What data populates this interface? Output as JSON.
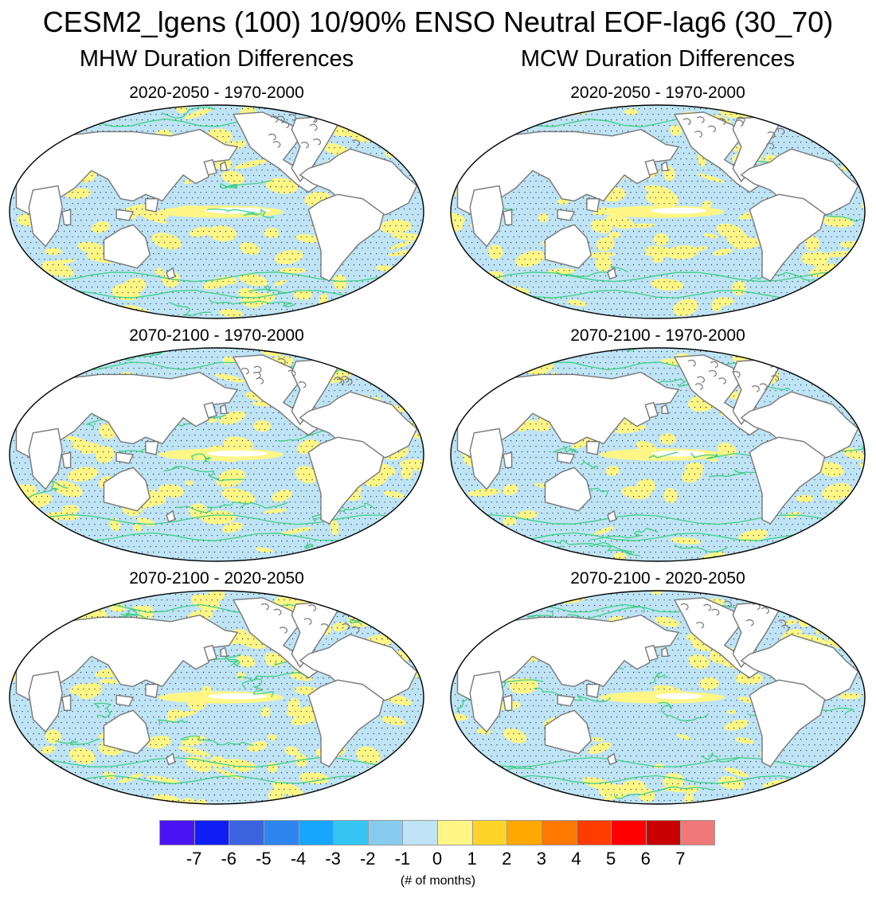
{
  "title": "CESM2_lgens (100) 10/90% ENSO Neutral EOF-lag6 (30_70)",
  "columns": [
    "MHW Duration Differences",
    "MCW Duration Differences"
  ],
  "panels": [
    {
      "subtitle": "2020-2050 - 1970-2000"
    },
    {
      "subtitle": "2020-2050 - 1970-2000"
    },
    {
      "subtitle": "2070-2100 - 1970-2000"
    },
    {
      "subtitle": "2070-2100 - 1970-2000"
    },
    {
      "subtitle": "2070-2100 - 2020-2050"
    },
    {
      "subtitle": "2070-2100 - 2020-2050"
    }
  ],
  "colorbar": {
    "colors": [
      "#4a14f5",
      "#0f1ef5",
      "#3c64e1",
      "#2f85f0",
      "#18a5ff",
      "#34c5f5",
      "#87cbef",
      "#bfe4f5",
      "#fff685",
      "#ffd42a",
      "#ffa800",
      "#ff7800",
      "#ff3c00",
      "#ff0000",
      "#c80000",
      "#f07878"
    ],
    "labels": [
      "-7",
      "-6",
      "-5",
      "-4",
      "-3",
      "-2",
      "-1",
      "0",
      "1",
      "2",
      "3",
      "4",
      "5",
      "6",
      "7"
    ],
    "units": "(# of months)"
  },
  "map_colors": {
    "ocean_neg": "#bfe4f5",
    "ocean_pos": "#fff685",
    "near_zero": "#ffffff",
    "contour": "#3fcf85",
    "coast": "#777777",
    "stipple": "#1c2540"
  }
}
